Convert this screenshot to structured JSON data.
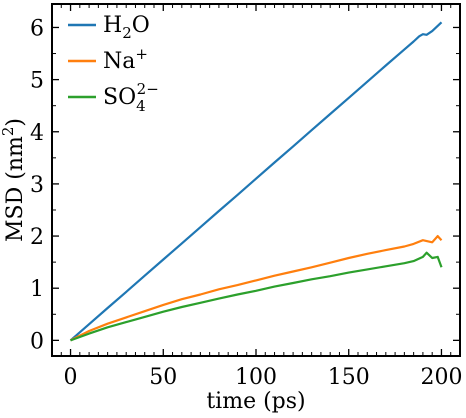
{
  "chart_data": {
    "type": "line",
    "title": "",
    "xlabel": "time (ps)",
    "ylabel_text": "MSD (nm",
    "ylabel_sup": "2",
    "ylabel_close": ")",
    "xlim": [
      -10,
      210
    ],
    "ylim": [
      -0.3,
      6.45
    ],
    "xticks": [
      0,
      50,
      100,
      150,
      200
    ],
    "yticks": [
      0,
      1,
      2,
      3,
      4,
      5,
      6
    ],
    "xtick_labels": [
      "0",
      "50",
      "100",
      "150",
      "200"
    ],
    "ytick_labels": [
      "0",
      "1",
      "2",
      "3",
      "4",
      "5",
      "6"
    ],
    "minor_xticks": [
      -5,
      5,
      10,
      15,
      20,
      25,
      30,
      35,
      40,
      45,
      55,
      60,
      65,
      70,
      75,
      80,
      85,
      90,
      95,
      105,
      110,
      115,
      120,
      125,
      130,
      135,
      140,
      145,
      155,
      160,
      165,
      170,
      175,
      180,
      185,
      190,
      195,
      205
    ],
    "minor_yticks": [
      0.5,
      1.5,
      2.5,
      3.5,
      4.5,
      5.5
    ],
    "grid": false,
    "legend_position": "top-left",
    "series": [
      {
        "key": "h2o",
        "legend_main": "H",
        "legend_sub": "2",
        "legend_tail": "O",
        "color": "#1f77b4",
        "x": [
          0,
          10,
          20,
          30,
          40,
          50,
          60,
          70,
          80,
          90,
          100,
          110,
          120,
          130,
          140,
          150,
          160,
          170,
          180,
          185,
          188,
          190,
          192,
          195,
          200
        ],
        "y": [
          0,
          0.31,
          0.62,
          0.93,
          1.24,
          1.55,
          1.86,
          2.17,
          2.48,
          2.79,
          3.1,
          3.41,
          3.72,
          4.03,
          4.34,
          4.65,
          4.96,
          5.27,
          5.58,
          5.73,
          5.83,
          5.87,
          5.86,
          5.93,
          6.1
        ]
      },
      {
        "key": "na",
        "legend_main": "Na",
        "legend_sup": "+",
        "color": "#ff7f0e",
        "x": [
          0,
          10,
          20,
          30,
          40,
          50,
          60,
          70,
          80,
          90,
          100,
          110,
          120,
          130,
          140,
          150,
          160,
          170,
          180,
          185,
          190,
          195,
          198,
          200
        ],
        "y": [
          0,
          0.18,
          0.32,
          0.44,
          0.56,
          0.68,
          0.79,
          0.88,
          0.98,
          1.06,
          1.15,
          1.24,
          1.32,
          1.4,
          1.49,
          1.58,
          1.66,
          1.73,
          1.8,
          1.85,
          1.92,
          1.88,
          2.0,
          1.92
        ]
      },
      {
        "key": "so4",
        "legend_main": "SO",
        "legend_sub": "4",
        "legend_sup": "2−",
        "color": "#2ca02c",
        "x": [
          0,
          10,
          20,
          30,
          40,
          50,
          60,
          70,
          80,
          90,
          100,
          110,
          120,
          130,
          140,
          150,
          160,
          170,
          180,
          185,
          190,
          192,
          195,
          198,
          200
        ],
        "y": [
          0,
          0.13,
          0.25,
          0.35,
          0.45,
          0.55,
          0.64,
          0.72,
          0.8,
          0.88,
          0.95,
          1.03,
          1.1,
          1.17,
          1.23,
          1.3,
          1.36,
          1.42,
          1.48,
          1.52,
          1.6,
          1.68,
          1.58,
          1.6,
          1.4
        ]
      }
    ]
  }
}
